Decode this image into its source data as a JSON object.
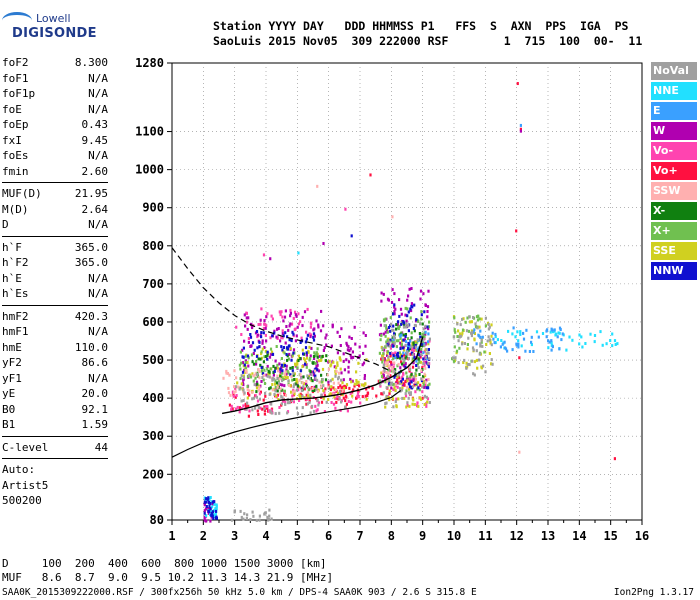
{
  "logo": {
    "line1": "Lowell",
    "line2": "DIGISONDE"
  },
  "header": {
    "line1": "Station YYYY DAY   DDD HHMMSS P1   FFS  S  AXN  PPS  IGA  PS",
    "line2": "SaoLuis 2015 Nov05  309 222000 RSF        1  715  100  00-  11"
  },
  "params": {
    "group1": [
      {
        "k": "foF2",
        "v": "8.300"
      },
      {
        "k": "foF1",
        "v": "N/A"
      },
      {
        "k": "foF1p",
        "v": "N/A"
      },
      {
        "k": "foE",
        "v": "N/A"
      },
      {
        "k": "foEp",
        "v": "0.43"
      },
      {
        "k": "fxI",
        "v": "9.45"
      },
      {
        "k": "foEs",
        "v": "N/A"
      },
      {
        "k": "fmin",
        "v": "2.60"
      }
    ],
    "group2": [
      {
        "k": "MUF(D)",
        "v": "21.95"
      },
      {
        "k": "M(D)",
        "v": "2.64"
      },
      {
        "k": "D",
        "v": "N/A"
      }
    ],
    "group3": [
      {
        "k": "h`F",
        "v": "365.0"
      },
      {
        "k": "h`F2",
        "v": "365.0"
      },
      {
        "k": "h`E",
        "v": "N/A"
      },
      {
        "k": "h`Es",
        "v": "N/A"
      }
    ],
    "group4": [
      {
        "k": "hmF2",
        "v": "420.3"
      },
      {
        "k": "hmF1",
        "v": "N/A"
      },
      {
        "k": "hmE",
        "v": "110.0"
      },
      {
        "k": "yF2",
        "v": "86.6"
      },
      {
        "k": "yF1",
        "v": "N/A"
      },
      {
        "k": "yE",
        "v": "20.0"
      },
      {
        "k": "B0",
        "v": "92.1"
      },
      {
        "k": "B1",
        "v": "1.59"
      }
    ],
    "clevel": {
      "k": "C-level",
      "v": "44"
    },
    "notes": [
      "Auto:",
      "Artist5",
      "500200"
    ]
  },
  "legend": [
    {
      "label": "NoVal",
      "color": "#a0a0a0"
    },
    {
      "label": "NNE",
      "color": "#22e0ff"
    },
    {
      "label": "E",
      "color": "#3aa0ff"
    },
    {
      "label": "W",
      "color": "#b000b0"
    },
    {
      "label": "Vo-",
      "color": "#ff44b0"
    },
    {
      "label": "Vo+",
      "color": "#ff1040"
    },
    {
      "label": "SSW",
      "color": "#ffb0b0"
    },
    {
      "label": "X-",
      "color": "#108010"
    },
    {
      "label": "X+",
      "color": "#70c050"
    },
    {
      "label": "SSE",
      "color": "#d0d020"
    },
    {
      "label": "NNW",
      "color": "#1010d0"
    }
  ],
  "mufd": {
    "line1": "D     100  200  400  600  800 1000 1500 3000 [km]",
    "line2": "MUF   8.6  8.7  9.0  9.5 10.2 11.3 14.3 21.9 [MHz]"
  },
  "footer": {
    "left": "SAA0K_2015309222000.RSF / 300fx256h 50 kHz 5.0 km / DPS-4 SAA0K 903 / 2.6 S 315.8 E",
    "right": "Ion2Png 1.3.17"
  },
  "chart_data": {
    "type": "scatter",
    "xlim": [
      1,
      16
    ],
    "ylim": [
      80,
      1280
    ],
    "x_ticks": [
      1,
      2,
      3,
      4,
      5,
      6,
      7,
      8,
      9,
      10,
      11,
      12,
      13,
      14,
      15,
      16
    ],
    "y_ticks": [
      80,
      200,
      300,
      400,
      500,
      600,
      700,
      800,
      900,
      1000,
      1100,
      1280
    ],
    "grid": true,
    "legend_position": "right",
    "series": [
      {
        "name": "Vo+",
        "color": "#ff1040",
        "clusters": [
          [
            2.6,
            4.5,
            355,
            420
          ],
          [
            4.5,
            7.5,
            380,
            440
          ],
          [
            7.5,
            9.0,
            400,
            520
          ],
          [
            6.0,
            7.5,
            400,
            440
          ]
        ]
      },
      {
        "name": "Vo-",
        "color": "#ff44b0",
        "clusters": [
          [
            2.8,
            7.0,
            365,
            430
          ],
          [
            3.0,
            5.5,
            560,
            640
          ],
          [
            7.6,
            9.2,
            380,
            560
          ]
        ]
      },
      {
        "name": "W",
        "color": "#b000b0",
        "clusters": [
          [
            3.2,
            5.8,
            430,
            640
          ],
          [
            5.8,
            7.2,
            440,
            600
          ],
          [
            7.6,
            9.2,
            430,
            700
          ],
          [
            2.0,
            2.3,
            80,
            140
          ]
        ]
      },
      {
        "name": "SSE",
        "color": "#d0d020",
        "clusters": [
          [
            3.0,
            5.8,
            400,
            540
          ],
          [
            5.8,
            7.2,
            400,
            520
          ],
          [
            7.6,
            9.2,
            380,
            560
          ],
          [
            9.9,
            11.2,
            480,
            620
          ]
        ]
      },
      {
        "name": "X+",
        "color": "#70c050",
        "clusters": [
          [
            3.1,
            5.8,
            420,
            540
          ],
          [
            7.6,
            9.2,
            420,
            640
          ],
          [
            9.9,
            11.0,
            500,
            620
          ]
        ]
      },
      {
        "name": "X-",
        "color": "#108010",
        "clusters": [
          [
            3.5,
            6.0,
            420,
            520
          ],
          [
            8.0,
            9.0,
            460,
            600
          ]
        ]
      },
      {
        "name": "NNE",
        "color": "#22e0ff",
        "clusters": [
          [
            11.0,
            15.2,
            530,
            580
          ],
          [
            2.0,
            2.4,
            90,
            150
          ]
        ]
      },
      {
        "name": "E",
        "color": "#3aa0ff",
        "clusters": [
          [
            10.5,
            13.5,
            520,
            590
          ],
          [
            8.0,
            9.2,
            500,
            580
          ]
        ]
      },
      {
        "name": "NNW",
        "color": "#1010d0",
        "clusters": [
          [
            2.0,
            2.4,
            85,
            145
          ],
          [
            3.2,
            5.6,
            460,
            580
          ],
          [
            7.8,
            9.2,
            430,
            650
          ]
        ]
      },
      {
        "name": "SSW",
        "color": "#ffb0b0",
        "clusters": [
          [
            2.6,
            6.5,
            410,
            480
          ],
          [
            7.6,
            9.2,
            430,
            500
          ]
        ]
      },
      {
        "name": "NoVal",
        "color": "#a0a0a0",
        "clusters": [
          [
            3.0,
            6.5,
            360,
            470
          ],
          [
            7.6,
            9.2,
            380,
            600
          ],
          [
            2.8,
            4.2,
            82,
            110
          ],
          [
            9.9,
            11.2,
            460,
            620
          ]
        ]
      }
    ],
    "outliers": [
      {
        "x": 12.0,
        "y": 1230,
        "color": "#ff1040"
      },
      {
        "x": 12.1,
        "y": 1120,
        "color": "#3aa0ff"
      },
      {
        "x": 12.1,
        "y": 1110,
        "color": "#ff1040"
      },
      {
        "x": 12.1,
        "y": 1105,
        "color": "#b000b0"
      },
      {
        "x": 11.95,
        "y": 843,
        "color": "#ff1040"
      },
      {
        "x": 15.1,
        "y": 245,
        "color": "#ff1040"
      },
      {
        "x": 12.05,
        "y": 262,
        "color": "#ffb0b0"
      },
      {
        "x": 12.05,
        "y": 510,
        "color": "#ff1040"
      },
      {
        "x": 5.6,
        "y": 960,
        "color": "#ffb0b0"
      },
      {
        "x": 7.3,
        "y": 990,
        "color": "#ff1040"
      },
      {
        "x": 6.5,
        "y": 900,
        "color": "#ff44b0"
      },
      {
        "x": 6.7,
        "y": 830,
        "color": "#1010d0"
      },
      {
        "x": 5.8,
        "y": 810,
        "color": "#b000b0"
      },
      {
        "x": 3.9,
        "y": 780,
        "color": "#ff44b0"
      },
      {
        "x": 4.1,
        "y": 770,
        "color": "#b000b0"
      },
      {
        "x": 5.0,
        "y": 785,
        "color": "#22e0ff"
      },
      {
        "x": 8.0,
        "y": 880,
        "color": "#ffb0b0"
      }
    ],
    "trace_solid_main": [
      [
        1.0,
        245
      ],
      [
        1.5,
        265
      ],
      [
        2.0,
        283
      ],
      [
        2.5,
        298
      ],
      [
        3.0,
        311
      ],
      [
        3.5,
        322
      ],
      [
        4.0,
        332
      ],
      [
        4.5,
        341
      ],
      [
        5.0,
        349
      ],
      [
        5.5,
        357
      ],
      [
        6.0,
        364
      ],
      [
        6.5,
        371
      ],
      [
        7.0,
        378
      ],
      [
        7.5,
        388
      ],
      [
        8.0,
        402
      ],
      [
        8.3,
        420
      ]
    ],
    "trace_dashed": [
      [
        1.0,
        795
      ],
      [
        1.5,
        740
      ],
      [
        2.0,
        690
      ],
      [
        2.5,
        650
      ],
      [
        3.0,
        617
      ],
      [
        3.5,
        593
      ],
      [
        4.0,
        576
      ],
      [
        4.5,
        563
      ],
      [
        5.0,
        553
      ],
      [
        5.5,
        544
      ],
      [
        6.0,
        535
      ],
      [
        6.5,
        520
      ],
      [
        7.0,
        505
      ],
      [
        7.5,
        490
      ],
      [
        8.0,
        470
      ]
    ],
    "trace_solid_upper": [
      [
        2.6,
        360
      ],
      [
        3.0,
        366
      ],
      [
        3.5,
        376
      ],
      [
        4.0,
        388
      ],
      [
        4.5,
        395
      ],
      [
        5.0,
        398
      ],
      [
        5.5,
        400
      ],
      [
        6.0,
        405
      ],
      [
        6.5,
        412
      ],
      [
        7.0,
        422
      ],
      [
        7.5,
        435
      ],
      [
        8.0,
        455
      ],
      [
        8.5,
        480
      ],
      [
        8.8,
        505
      ],
      [
        9.0,
        560
      ]
    ]
  }
}
